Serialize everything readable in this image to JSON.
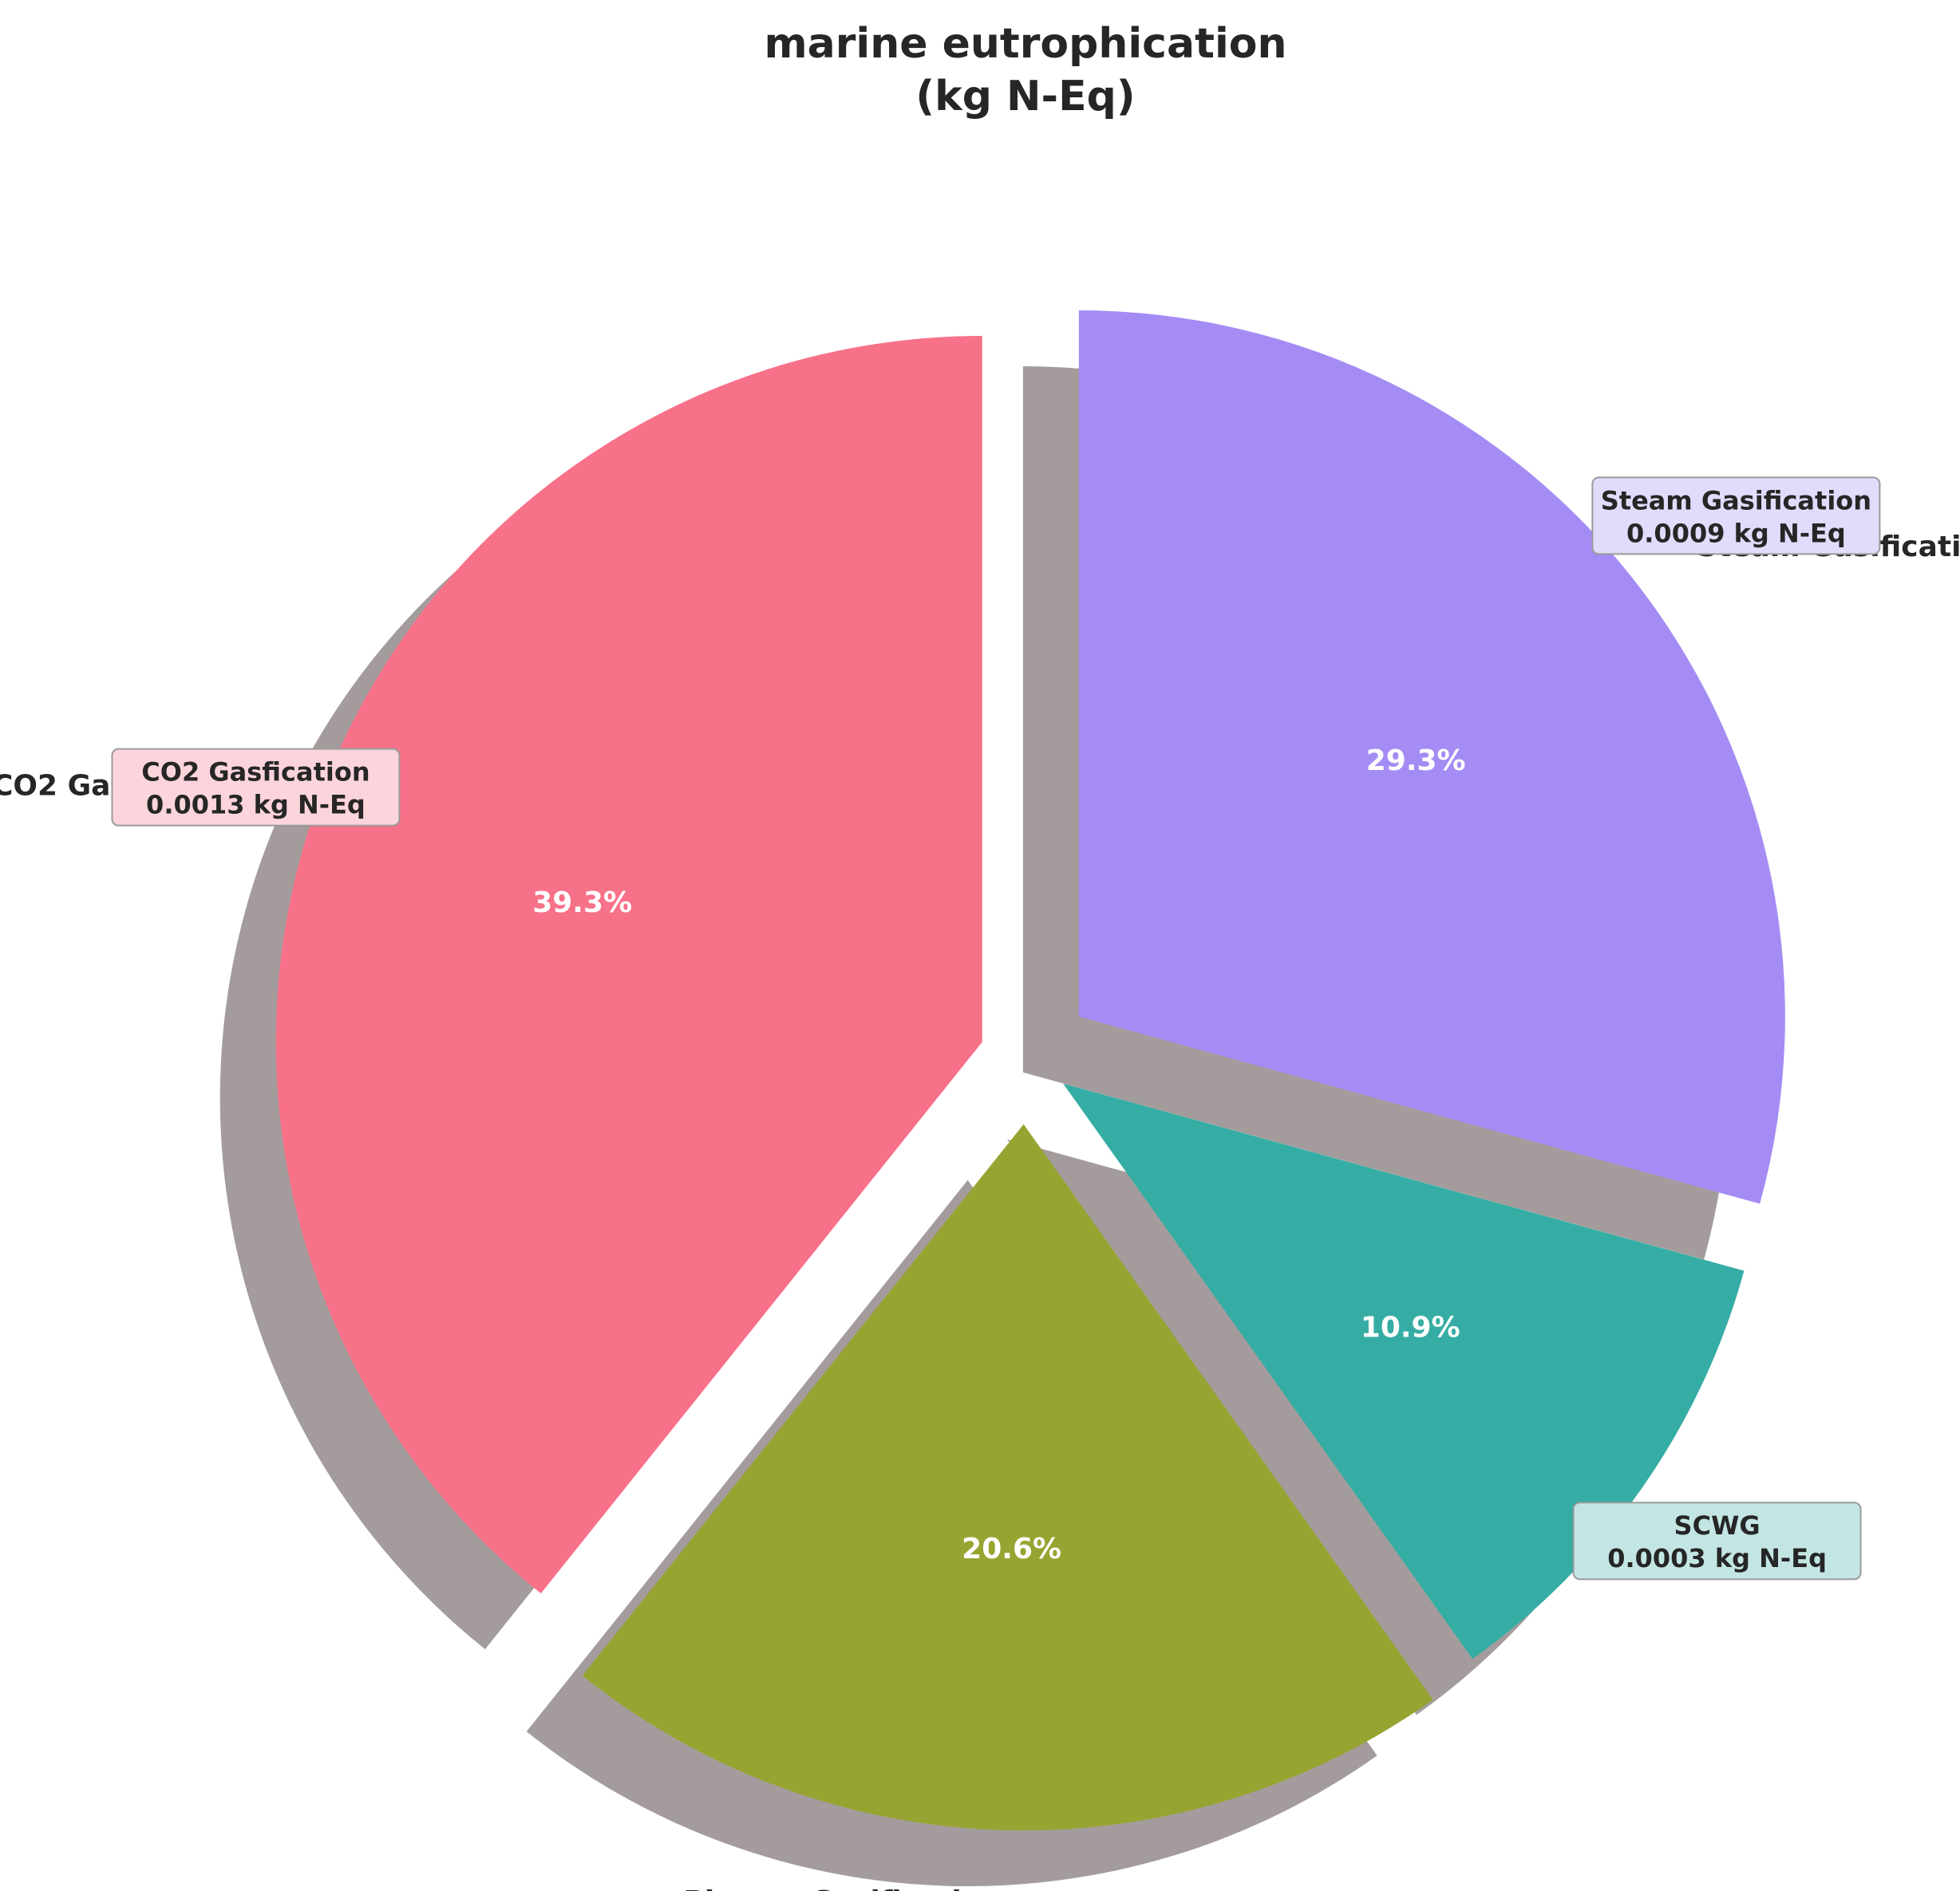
{
  "chart_data": {
    "type": "pie",
    "title_lines": [
      "marine eutrophication",
      "(kg N-Eq)"
    ],
    "slices": [
      {
        "label": "CO2 Gasfication",
        "percent": 39.3,
        "pct_label": "39.3%",
        "value_label": "0.0013 kg N-Eq",
        "color": "#f77189",
        "box_color": "#fcd4dc",
        "annotated": true
      },
      {
        "label": "Plasma Gasification",
        "percent": 20.6,
        "pct_label": "20.6%",
        "value_label": "",
        "color": "#97a431",
        "box_color": "",
        "annotated": false
      },
      {
        "label": "SCWG",
        "percent": 10.9,
        "pct_label": "10.9%",
        "value_label": "0.0003 kg N-Eq",
        "color": "#36ada4",
        "box_color": "#c3e6e4",
        "annotated": true
      },
      {
        "label": "Steam Gasification",
        "percent": 29.3,
        "pct_label": "29.3%",
        "value_label": "0.0009 kg N-Eq",
        "color": "#a48cf4",
        "box_color": "#e2dbfb",
        "annotated": true
      }
    ],
    "start_angle": "top",
    "direction": "counterclockwise",
    "exploded": true,
    "shadow": true,
    "legend": "none"
  }
}
